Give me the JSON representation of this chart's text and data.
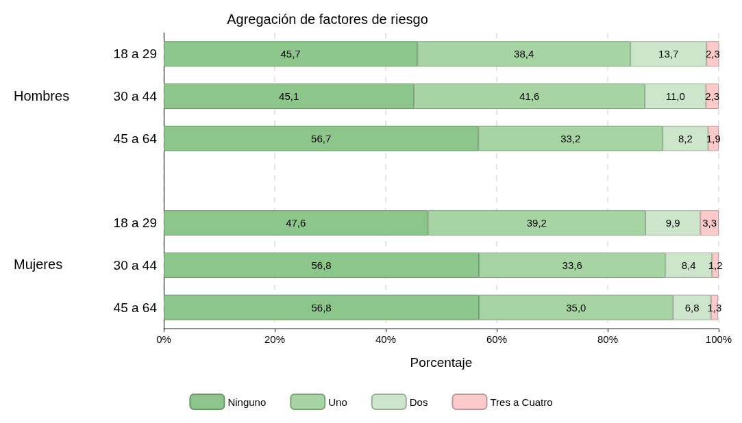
{
  "chart_data": {
    "type": "bar",
    "orientation": "horizontal",
    "stacked": true,
    "title": "Agregación de factores de riesgo",
    "xlabel": "Porcentaje",
    "categories": [
      "18 a 29",
      "30 a 44",
      "45 a 64",
      null,
      "18 a 29",
      "30 a 44",
      "45 a 64"
    ],
    "annotations": [
      "Hombres",
      "Mujeres"
    ],
    "series": [
      {
        "name": "Ninguno",
        "color": "#8dc68a",
        "values": [
          45.7,
          45.1,
          56.7,
          null,
          47.6,
          56.8,
          56.8
        ],
        "value_labels": [
          "45,7",
          "45,1",
          "56,7",
          null,
          "47,6",
          "56,8",
          "56,8"
        ]
      },
      {
        "name": "Uno",
        "color": "#a6d4a3",
        "values": [
          38.4,
          41.6,
          33.2,
          null,
          39.2,
          33.6,
          35.0
        ],
        "value_labels": [
          "38,4",
          "41,6",
          "33,2",
          null,
          "39,2",
          "33,6",
          "35,0"
        ]
      },
      {
        "name": "Dos",
        "color": "#cde6cb",
        "values": [
          13.7,
          11.0,
          8.2,
          null,
          9.9,
          8.4,
          6.8
        ],
        "value_labels": [
          "13,7",
          "11,0",
          "8,2",
          null,
          "9,9",
          "8,4",
          "6,8"
        ]
      },
      {
        "name": "Tres a Cuatro",
        "color": "#fccaca",
        "values": [
          2.3,
          2.3,
          1.9,
          null,
          3.3,
          1.2,
          1.3
        ],
        "value_labels": [
          "2,3",
          "2,3",
          "1,9",
          null,
          "3,3",
          "1,2",
          "1,3"
        ]
      }
    ],
    "xlim": [
      0,
      100
    ],
    "xticks": [
      {
        "value": 0,
        "label": "0%"
      },
      {
        "value": 20,
        "label": "20%"
      },
      {
        "value": 40,
        "label": "40%"
      },
      {
        "value": 60,
        "label": "60%"
      },
      {
        "value": 80,
        "label": "80%"
      },
      {
        "value": 100,
        "label": "100%"
      }
    ],
    "grid": "x",
    "legend": "bottom"
  }
}
